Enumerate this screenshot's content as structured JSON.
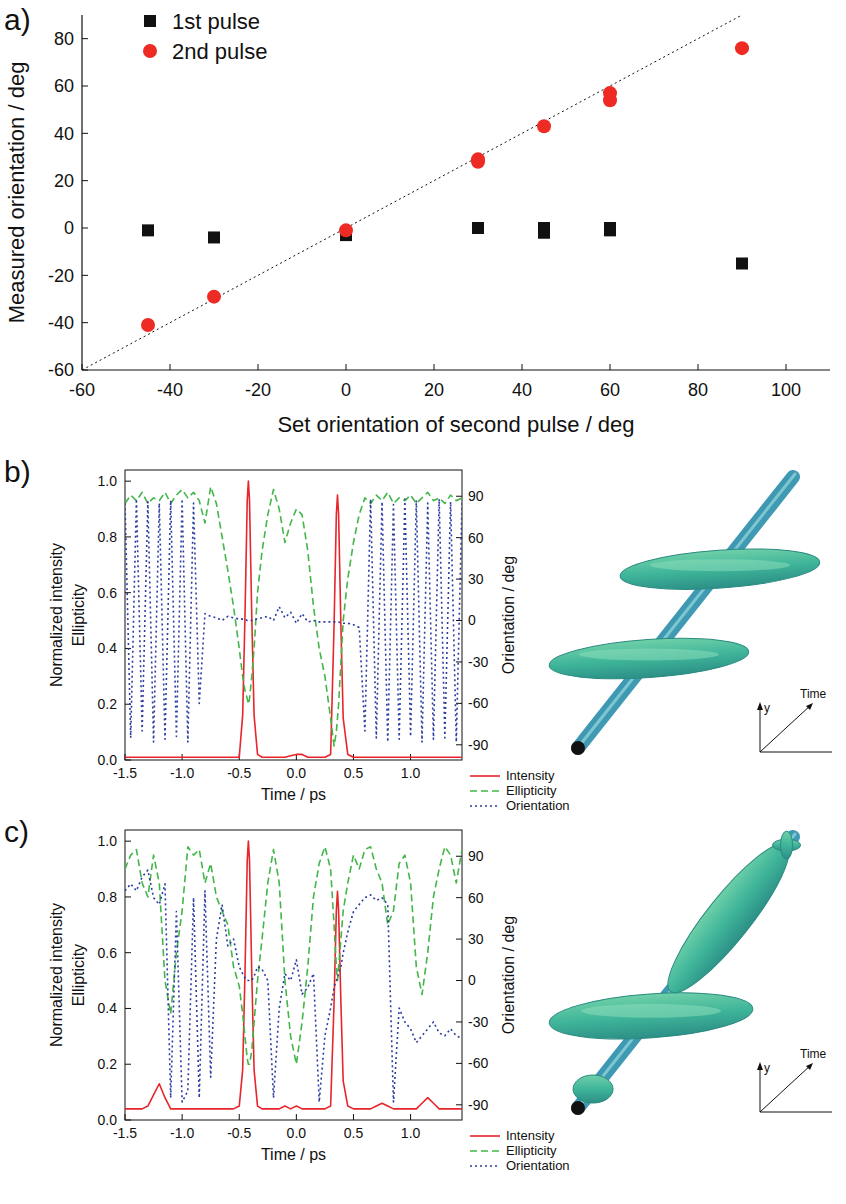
{
  "chart_data": [
    {
      "type": "scatter",
      "title": "a)",
      "xlabel": "Set orientation of second pulse / deg",
      "ylabel": "Measured orientation / deg",
      "xlim": [
        -60,
        110
      ],
      "ylim": [
        -60,
        90
      ],
      "xticks": [
        -60,
        -40,
        -20,
        0,
        20,
        40,
        60,
        80,
        100
      ],
      "yticks": [
        -60,
        -40,
        -20,
        0,
        20,
        40,
        60,
        80
      ],
      "legend": "top-left",
      "series": [
        {
          "name": "1st pulse",
          "color": "#111111",
          "marker": "square",
          "x": [
            -45,
            -30,
            0,
            30,
            45,
            45,
            60,
            60,
            90
          ],
          "values": [
            -1,
            -4,
            -3,
            0,
            0,
            -2,
            0,
            -1,
            -15
          ]
        },
        {
          "name": "2nd pulse",
          "color": "#ee2a24",
          "marker": "circle",
          "x": [
            -45,
            -30,
            0,
            30,
            30,
            45,
            60,
            60,
            90
          ],
          "values": [
            -41,
            -29,
            -1,
            28,
            29,
            43,
            54,
            57,
            76
          ]
        },
        {
          "type": "line",
          "line_style": "dotted",
          "color": "#111111",
          "x": [
            -60,
            90
          ],
          "values": [
            -60,
            90
          ]
        }
      ]
    },
    {
      "type": "line",
      "title": "b)",
      "xlabel": "Time / ps",
      "ylabel": [
        "Normalized intensity",
        "Ellipticity"
      ],
      "y2label": "Orientation / deg",
      "xlim": [
        -1.5,
        1.45
      ],
      "ylim": [
        0,
        1.04
      ],
      "y2lim": [
        -101,
        109
      ],
      "xticks": [
        -1.5,
        {
          "value": -1,
          "label": "-1.0"
        },
        -0.5,
        {
          "value": 0,
          "label": "0.0"
        },
        0.5,
        {
          "value": 1,
          "label": "1.0"
        }
      ],
      "yticks": [
        {
          "value": 0,
          "label": "0.0"
        },
        0.2,
        0.4,
        0.6,
        0.8,
        {
          "value": 1,
          "label": "1.0"
        }
      ],
      "y2ticks": [
        -90,
        -60,
        -30,
        0,
        30,
        60,
        90
      ],
      "legend": "bottom-right",
      "annotations": [
        "y",
        "Time"
      ],
      "x": [
        -1.5,
        -1.45,
        -1.4,
        -1.35,
        -1.3,
        -1.25,
        -1.2,
        -1.15,
        -1.1,
        -1.05,
        -1.0,
        -0.95,
        -0.9,
        -0.85,
        -0.8,
        -0.75,
        -0.7,
        -0.65,
        -0.6,
        -0.55,
        -0.5,
        -0.47,
        -0.45,
        -0.43,
        -0.42,
        -0.41,
        -0.39,
        -0.37,
        -0.34,
        -0.3,
        -0.25,
        -0.2,
        -0.15,
        -0.1,
        -0.05,
        0,
        0.05,
        0.1,
        0.15,
        0.2,
        0.25,
        0.3,
        0.33,
        0.35,
        0.36,
        0.37,
        0.39,
        0.41,
        0.45,
        0.5,
        0.55,
        0.6,
        0.65,
        0.7,
        0.75,
        0.8,
        0.85,
        0.9,
        0.95,
        1.0,
        1.05,
        1.1,
        1.15,
        1.2,
        1.25,
        1.3,
        1.35,
        1.4,
        1.45
      ],
      "series": [
        {
          "name": "Intensity",
          "color": "#e8252a",
          "line_style": "solid",
          "values": [
            0.01,
            0.01,
            0.01,
            0.01,
            0.01,
            0.01,
            0.01,
            0.01,
            0.01,
            0.01,
            0.01,
            0.01,
            0.01,
            0.01,
            0.01,
            0.01,
            0.01,
            0.01,
            0.01,
            0.01,
            0.01,
            0.16,
            0.51,
            0.93,
            1.0,
            0.93,
            0.51,
            0.16,
            0.02,
            0.01,
            0.01,
            0.01,
            0.01,
            0.01,
            0.015,
            0.02,
            0.02,
            0.01,
            0.01,
            0.01,
            0.01,
            0.02,
            0.48,
            0.88,
            0.95,
            0.88,
            0.48,
            0.15,
            0.02,
            0.01,
            0.01,
            0.01,
            0.01,
            0.01,
            0.01,
            0.01,
            0.01,
            0.01,
            0.01,
            0.01,
            0.01,
            0.01,
            0.01,
            0.01,
            0.01,
            0.01,
            0.01,
            0.01,
            0.01
          ]
        },
        {
          "name": "Ellipticity",
          "color": "#43b649",
          "line_style": "dashed",
          "values": [
            0.92,
            0.95,
            0.93,
            0.96,
            0.92,
            0.94,
            0.93,
            0.96,
            0.92,
            0.95,
            0.97,
            0.94,
            0.96,
            0.93,
            0.85,
            0.98,
            0.92,
            0.8,
            0.68,
            0.55,
            0.4,
            0.3,
            0.25,
            0.22,
            0.2,
            0.22,
            0.3,
            0.4,
            0.6,
            0.75,
            0.88,
            0.97,
            0.9,
            0.78,
            0.85,
            0.9,
            0.88,
            0.75,
            0.55,
            0.4,
            0.3,
            0.15,
            0.05,
            0.1,
            0.15,
            0.2,
            0.35,
            0.5,
            0.65,
            0.78,
            0.88,
            0.94,
            0.92,
            0.95,
            0.93,
            0.96,
            0.92,
            0.94,
            0.93,
            0.95,
            0.92,
            0.94,
            0.96,
            0.93,
            0.94,
            0.92,
            0.95,
            0.93,
            0.94
          ]
        },
        {
          "name": "Orientation",
          "color": "#2b3d9e",
          "line_style": "dotted",
          "axis": "y2",
          "values": [
            85,
            -85,
            88,
            -80,
            86,
            -88,
            85,
            -86,
            87,
            -84,
            88,
            -88,
            85,
            -60,
            5,
            3,
            2,
            0,
            3,
            2,
            1,
            1,
            1,
            0,
            0,
            0,
            0,
            1,
            1,
            2,
            3,
            0,
            10,
            2,
            6,
            -2,
            5,
            -1,
            0,
            -1,
            -1,
            -1,
            -1,
            -1,
            -1,
            -1,
            -2,
            -2,
            -2,
            -3,
            -5,
            -80,
            88,
            -85,
            86,
            -88,
            84,
            -86,
            88,
            -84,
            87,
            -88,
            85,
            -86,
            88,
            -85,
            86,
            -88,
            85
          ]
        }
      ]
    },
    {
      "type": "line",
      "title": "c)",
      "xlabel": "Time / ps",
      "ylabel": [
        "Normalized intensity",
        "Ellipticity"
      ],
      "y2label": "Orientation / deg",
      "xlim": [
        -1.5,
        1.45
      ],
      "ylim": [
        0,
        1.04
      ],
      "y2lim": [
        -101,
        109
      ],
      "xticks": [
        -1.5,
        {
          "value": -1,
          "label": "-1.0"
        },
        -0.5,
        {
          "value": 0,
          "label": "0.0"
        },
        0.5,
        {
          "value": 1,
          "label": "1.0"
        }
      ],
      "yticks": [
        {
          "value": 0,
          "label": "0.0"
        },
        0.2,
        0.4,
        0.6,
        0.8,
        {
          "value": 1,
          "label": "1.0"
        }
      ],
      "y2ticks": [
        -90,
        -60,
        -30,
        0,
        30,
        60,
        90
      ],
      "legend": "bottom-right",
      "annotations": [
        "y",
        "Time"
      ],
      "x": [
        -1.5,
        -1.45,
        -1.4,
        -1.35,
        -1.3,
        -1.25,
        -1.2,
        -1.15,
        -1.1,
        -1.05,
        -1.0,
        -0.95,
        -0.9,
        -0.85,
        -0.8,
        -0.75,
        -0.7,
        -0.65,
        -0.6,
        -0.55,
        -0.5,
        -0.47,
        -0.45,
        -0.43,
        -0.42,
        -0.41,
        -0.39,
        -0.37,
        -0.34,
        -0.3,
        -0.25,
        -0.2,
        -0.15,
        -0.1,
        -0.05,
        0,
        0.05,
        0.1,
        0.15,
        0.2,
        0.25,
        0.3,
        0.33,
        0.35,
        0.36,
        0.37,
        0.39,
        0.41,
        0.45,
        0.5,
        0.55,
        0.6,
        0.65,
        0.7,
        0.75,
        0.8,
        0.85,
        0.9,
        0.95,
        1.0,
        1.05,
        1.1,
        1.15,
        1.2,
        1.25,
        1.3,
        1.35,
        1.4,
        1.45
      ],
      "series": [
        {
          "name": "Intensity",
          "color": "#e8252a",
          "line_style": "solid",
          "values": [
            0.04,
            0.04,
            0.04,
            0.04,
            0.05,
            0.09,
            0.13,
            0.08,
            0.04,
            0.04,
            0.04,
            0.04,
            0.04,
            0.04,
            0.04,
            0.04,
            0.04,
            0.04,
            0.04,
            0.04,
            0.05,
            0.18,
            0.52,
            0.93,
            1.0,
            0.93,
            0.52,
            0.18,
            0.05,
            0.04,
            0.04,
            0.04,
            0.04,
            0.05,
            0.04,
            0.05,
            0.04,
            0.04,
            0.04,
            0.04,
            0.04,
            0.05,
            0.42,
            0.75,
            0.82,
            0.75,
            0.42,
            0.14,
            0.05,
            0.04,
            0.04,
            0.04,
            0.04,
            0.05,
            0.06,
            0.05,
            0.04,
            0.04,
            0.04,
            0.04,
            0.04,
            0.06,
            0.08,
            0.06,
            0.04,
            0.04,
            0.04,
            0.04,
            0.04
          ]
        },
        {
          "name": "Ellipticity",
          "color": "#43b649",
          "line_style": "dashed",
          "values": [
            0.9,
            0.95,
            0.97,
            0.85,
            0.8,
            0.95,
            0.85,
            0.5,
            0.38,
            0.6,
            0.75,
            0.98,
            0.95,
            0.97,
            0.85,
            0.92,
            0.8,
            0.75,
            0.7,
            0.55,
            0.48,
            0.38,
            0.3,
            0.22,
            0.2,
            0.2,
            0.25,
            0.35,
            0.5,
            0.65,
            0.85,
            0.97,
            0.85,
            0.5,
            0.3,
            0.2,
            0.35,
            0.55,
            0.8,
            0.92,
            0.98,
            0.9,
            0.7,
            0.55,
            0.5,
            0.55,
            0.65,
            0.75,
            0.85,
            0.95,
            0.9,
            0.97,
            0.98,
            0.9,
            0.85,
            0.7,
            0.75,
            0.92,
            0.95,
            0.85,
            0.55,
            0.45,
            0.6,
            0.8,
            0.9,
            0.98,
            0.95,
            0.85,
            0.97
          ]
        },
        {
          "name": "Orientation",
          "color": "#2b3d9e",
          "line_style": "dotted",
          "axis": "y2",
          "values": [
            65,
            70,
            65,
            75,
            80,
            60,
            55,
            70,
            -85,
            50,
            -88,
            -80,
            60,
            -85,
            65,
            -70,
            30,
            55,
            25,
            30,
            10,
            5,
            2,
            0,
            0,
            0,
            0,
            3,
            10,
            8,
            0,
            -85,
            -20,
            5,
            0,
            15,
            -10,
            -5,
            5,
            -88,
            -40,
            -20,
            -5,
            0,
            2,
            5,
            10,
            20,
            35,
            50,
            55,
            60,
            62,
            58,
            60,
            55,
            -88,
            -20,
            -30,
            -35,
            -45,
            -40,
            -35,
            -30,
            -38,
            -40,
            -35,
            -40,
            -42
          ]
        }
      ]
    }
  ]
}
